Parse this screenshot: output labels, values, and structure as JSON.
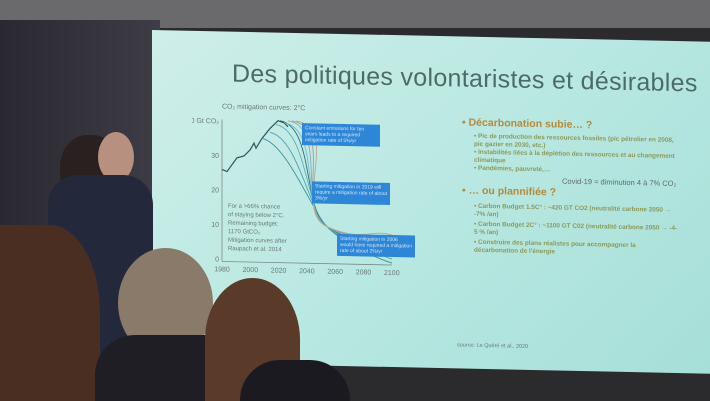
{
  "slide": {
    "title": "Des politiques volontaristes et désirables",
    "chart": {
      "title": "CO₂ mitigation curves: 2°C",
      "y_ticks": [
        "40 Gt CO₂",
        "30",
        "20",
        "10",
        "0"
      ],
      "x_ticks": [
        "1980",
        "2000",
        "2020",
        "2040",
        "2060",
        "2080",
        "2100"
      ],
      "callouts": [
        "Constant emissions for ten years leads to a required mitigation rate of 5%/yr",
        "Starting mitigation in 2019 will require a mitigation rate of about 3%/yr",
        "Starting mitigation in 2006 would have required a mitigation rate of about 2%/yr"
      ],
      "annotation": [
        "For a >66% chance",
        "of staying below 2°C.",
        "Remaining budget:",
        "1170 GtCO₂",
        "Mitigation curves after",
        "Raupach et al. 2014"
      ],
      "accent": "#2e86d6"
    },
    "sections": [
      {
        "heading": "Décarbonation subie… ?",
        "items": [
          "Pic de production des ressources fossiles (pic pétrolier en 2008, pic gazier en 2030, etc.)",
          "Instabilités liées à la déplétion des ressources et au changement climatique",
          "Pandémies, pauvreté,…"
        ],
        "note": "Covid-19 = diminution 4 à 7% CO₂"
      },
      {
        "heading": "… ou plannifiée ?",
        "items": [
          "Carbon Budget 1.5C° : ~420 GT CO2  (neutralité carbone 2050 → -7% /an)",
          "Carbon Budget 2C° : ~1100 GT C02  (neutralité carbone 2050 → -4-5 % /an)",
          "Construire des plans réalistes pour accompagner la décarbonation de l'énergie"
        ]
      }
    ],
    "source": "source: Le Quéré et al., 2020"
  }
}
